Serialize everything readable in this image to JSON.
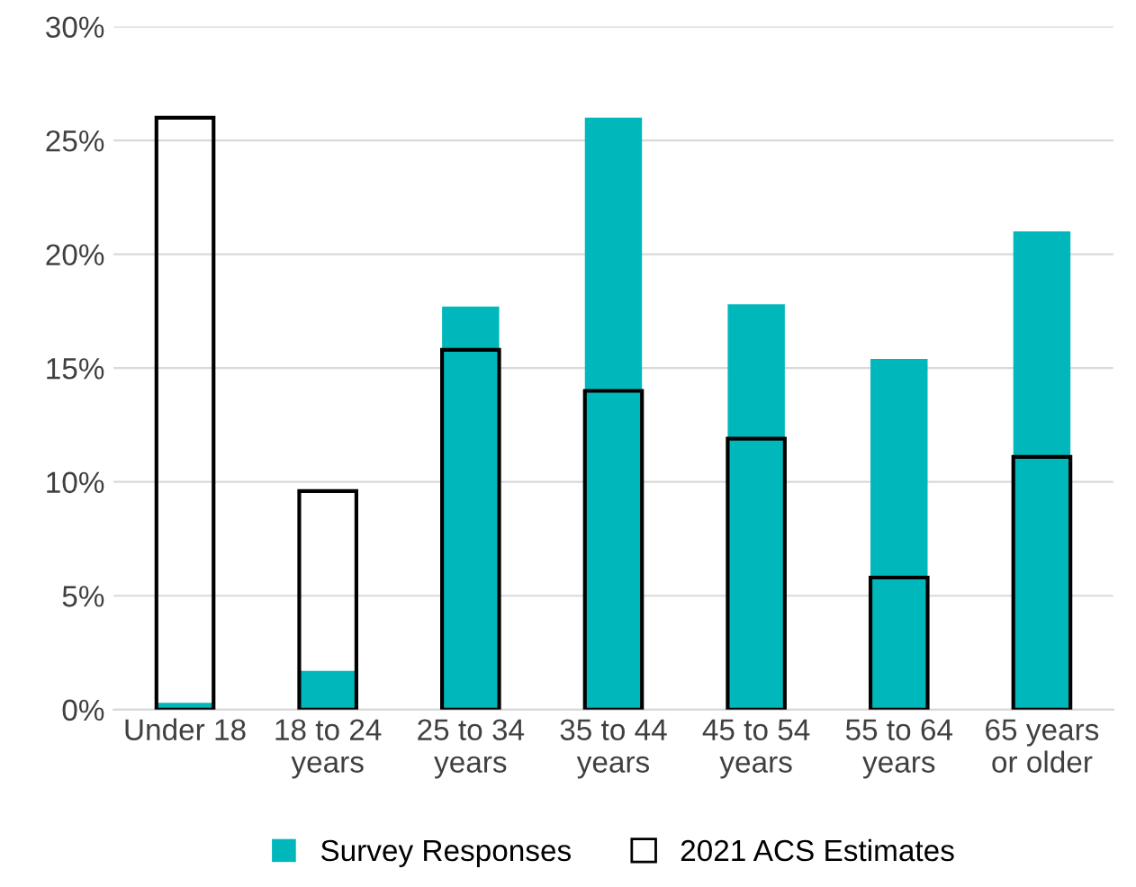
{
  "chart_data": {
    "type": "bar",
    "categories": [
      "Under 18",
      "18 to 24\nyears",
      "25 to 34\nyears",
      "35 to 44\nyears",
      "45 to 54\nyears",
      "55 to 64\nyears",
      "65 years\nor older"
    ],
    "series": [
      {
        "name": "Survey Responses",
        "color": "#00b8bc",
        "values": [
          0.3,
          1.7,
          17.7,
          26.0,
          17.8,
          15.4,
          21.0
        ]
      },
      {
        "name": "2021 ACS Estimates",
        "color": "#000000",
        "values": [
          26.0,
          9.6,
          15.8,
          14.0,
          11.9,
          5.8,
          11.1
        ]
      }
    ],
    "ylim": [
      0,
      30
    ],
    "yticks": [
      {
        "value": 0,
        "label": "0%"
      },
      {
        "value": 5,
        "label": "5%"
      },
      {
        "value": 10,
        "label": "10%"
      },
      {
        "value": 15,
        "label": "15%"
      },
      {
        "value": 20,
        "label": "20%"
      },
      {
        "value": 25,
        "label": "25%"
      },
      {
        "value": 30,
        "label": "30%"
      }
    ],
    "grid": "y",
    "legend": "bottom"
  }
}
